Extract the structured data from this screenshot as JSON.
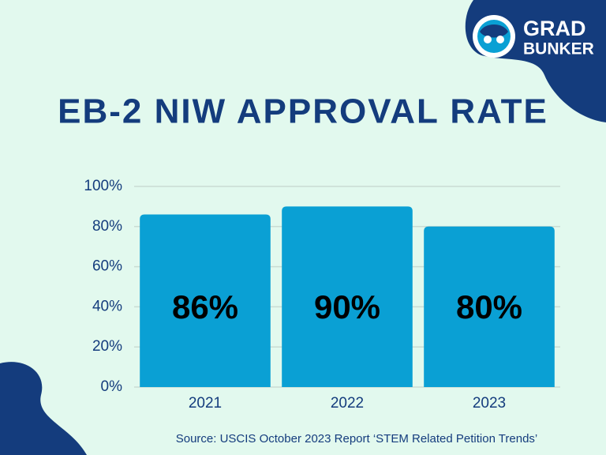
{
  "chart_data": {
    "type": "bar",
    "title": "EB-2 NIW APPROVAL RATE",
    "categories": [
      "2021",
      "2022",
      "2023"
    ],
    "values": [
      86,
      90,
      80
    ],
    "value_labels": [
      "86%",
      "90%",
      "80%"
    ],
    "color": "#0aa0d4",
    "ylim": [
      0,
      100
    ],
    "yticks": [
      {
        "value": 0,
        "label": "0%"
      },
      {
        "value": 20,
        "label": "20%"
      },
      {
        "value": 40,
        "label": "40%"
      },
      {
        "value": 60,
        "label": "60%"
      },
      {
        "value": 80,
        "label": "80%"
      },
      {
        "value": 100,
        "label": "100%"
      }
    ],
    "grid": true,
    "source": "Source: USCIS October 2023 Report ‘STEM Related Petition Trends’"
  },
  "logo": {
    "line1": "GRAD",
    "line2": "BUNKER"
  }
}
